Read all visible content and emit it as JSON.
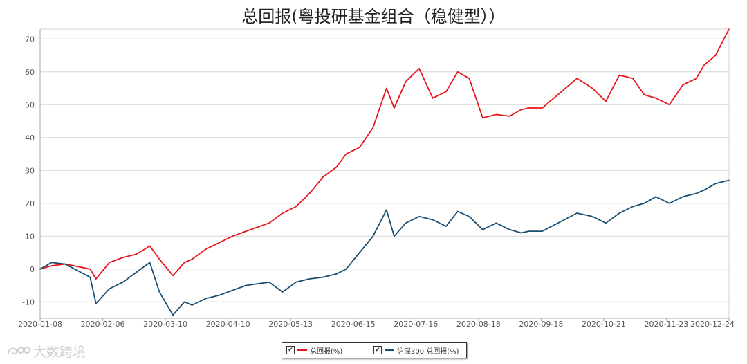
{
  "chart_data": {
    "type": "line",
    "title": "总回报(粤投研基金组合（稳健型））",
    "ylim": [
      -15,
      73
    ],
    "yticks": [
      -10,
      0,
      10,
      20,
      30,
      40,
      50,
      60,
      70
    ],
    "xticks": [
      "2020-01-08",
      "2020-02-06",
      "2020-03-10",
      "2020-04-10",
      "2020-05-13",
      "2020-06-15",
      "2020-07-16",
      "2020-08-18",
      "2020-09-18",
      "2020-10-21",
      "2020-11-23",
      "2020-12-24"
    ],
    "grid": true,
    "legend_position": "bottom-center",
    "x": [
      "2020-01-08",
      "2020-01-14",
      "2020-01-21",
      "2020-02-03",
      "2020-02-06",
      "2020-02-13",
      "2020-02-20",
      "2020-02-27",
      "2020-03-05",
      "2020-03-10",
      "2020-03-17",
      "2020-03-23",
      "2020-03-27",
      "2020-04-03",
      "2020-04-10",
      "2020-04-17",
      "2020-04-24",
      "2020-05-06",
      "2020-05-13",
      "2020-05-20",
      "2020-05-27",
      "2020-06-03",
      "2020-06-10",
      "2020-06-15",
      "2020-06-22",
      "2020-06-29",
      "2020-07-06",
      "2020-07-10",
      "2020-07-16",
      "2020-07-23",
      "2020-07-30",
      "2020-08-06",
      "2020-08-12",
      "2020-08-18",
      "2020-08-25",
      "2020-09-01",
      "2020-09-08",
      "2020-09-14",
      "2020-09-18",
      "2020-09-25",
      "2020-10-13",
      "2020-10-21",
      "2020-10-28",
      "2020-11-04",
      "2020-11-11",
      "2020-11-17",
      "2020-11-23",
      "2020-11-30",
      "2020-12-07",
      "2020-12-14",
      "2020-12-18",
      "2020-12-24",
      "2020-12-31"
    ],
    "series": [
      {
        "name": "总回报(%)",
        "color": "#e8141b",
        "values": [
          0,
          1,
          1.5,
          0,
          -3,
          2,
          3.5,
          4.5,
          7,
          3,
          -2,
          2,
          3,
          6,
          8,
          10,
          11.5,
          14,
          17,
          19,
          23,
          28,
          31,
          35,
          37,
          43,
          55,
          49,
          57,
          61,
          52,
          54,
          60,
          58,
          46,
          47,
          46.5,
          48.5,
          49,
          49,
          58,
          55,
          51,
          59,
          58,
          53,
          52,
          50,
          56,
          58,
          62,
          65,
          73
        ]
      },
      {
        "name": "沪深300 总回报(%)",
        "color": "#1b4f72",
        "values": [
          0,
          2,
          1.5,
          -2.5,
          -10.5,
          -6,
          -4,
          -1,
          2,
          -7,
          -14,
          -10,
          -11,
          -9,
          -8,
          -6.5,
          -5,
          -4,
          -7,
          -4,
          -3,
          -2.5,
          -1.5,
          0,
          5,
          10,
          18,
          10,
          14,
          16,
          15,
          13,
          17.5,
          16,
          12,
          14,
          12,
          11,
          11.5,
          11.5,
          17,
          16,
          14,
          17,
          19,
          20,
          22,
          20,
          22,
          23,
          24,
          26,
          27
        ]
      }
    ]
  },
  "watermark": {
    "text": "大数跨境",
    "icon": "swirl-logo-icon"
  }
}
